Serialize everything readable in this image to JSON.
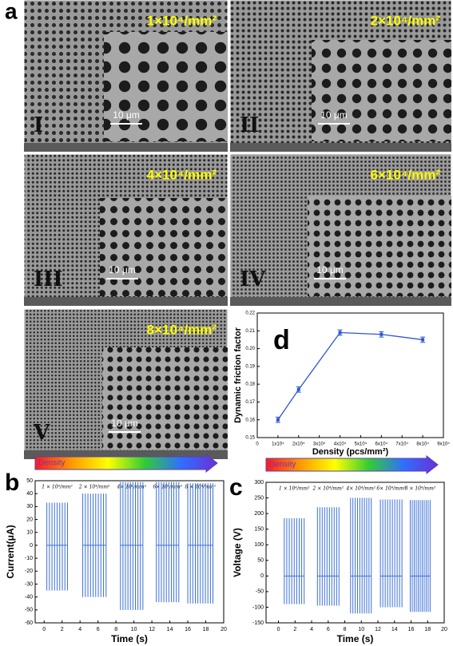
{
  "panel_labels": {
    "a": "a",
    "b": "b",
    "c": "c",
    "d": "d"
  },
  "sem_panels": [
    {
      "density": "1×10⁴/mm²",
      "numeral": "I",
      "scale_bar": "10 μm"
    },
    {
      "density": "2×10⁴/mm²",
      "numeral": "II",
      "scale_bar": "10 μm"
    },
    {
      "density": "4×10⁴/mm²",
      "numeral": "III",
      "scale_bar": "10 μm"
    },
    {
      "density": "6×10⁴/mm²",
      "numeral": "IV",
      "scale_bar": "10 μm"
    },
    {
      "density": "8×10⁴/mm²",
      "numeral": "V",
      "scale_bar": "10 μm"
    }
  ],
  "chart_data": [
    {
      "type": "line",
      "y_label": "Dynamic friction factor",
      "x_label": "Density (pcs/mm²)",
      "x": [
        10000,
        20000,
        40000,
        60000,
        80000
      ],
      "series": [
        {
          "color": "#2f55d4",
          "values": [
            0.16,
            0.177,
            0.209,
            0.208,
            0.205
          ],
          "errors": [
            0.0015,
            0.0015,
            0.0015,
            0.0015,
            0.0015
          ]
        }
      ],
      "xlim": [
        0,
        90000
      ],
      "xticks": [
        0,
        {
          "value": 10000,
          "label": "1x10⁴"
        },
        {
          "value": 20000,
          "label": "2x10⁴"
        },
        {
          "value": 30000,
          "label": "3x10⁴"
        },
        {
          "value": 40000,
          "label": "4x10⁴"
        },
        {
          "value": 50000,
          "label": "5x10⁴"
        },
        {
          "value": 60000,
          "label": "6x10⁴"
        },
        {
          "value": 70000,
          "label": "7x10⁴"
        },
        {
          "value": 80000,
          "label": "8x10⁴"
        },
        {
          "value": 90000,
          "label": "9x10⁴"
        }
      ],
      "ylim": [
        0.15,
        0.22
      ],
      "yticks": [
        0.15,
        0.16,
        0.17,
        0.18,
        0.19,
        {
          "value": 0.2,
          "label": "0.20"
        },
        0.21,
        0.22
      ]
    },
    {
      "type": "pulses",
      "legend_label": "Density",
      "y_label": "Current(μA)",
      "x_label": "Time (s)",
      "color": "#3a6fd8",
      "groups": [
        {
          "name": "1 × 10⁴/mm²",
          "x": [
            0.3,
            2.6
          ],
          "values": [
            -35,
            33
          ],
          "pulses": 9
        },
        {
          "name": "2 × 10⁴/mm²",
          "x": [
            4.3,
            6.9
          ],
          "values": [
            -40,
            40
          ],
          "pulses": 10
        },
        {
          "name": "4× 10⁴/mm²",
          "x": [
            8.5,
            11
          ],
          "values": [
            -50,
            49
          ],
          "pulses": 10
        },
        {
          "name": "6× 10⁴/mm²",
          "x": [
            12.5,
            15
          ],
          "values": [
            -44,
            49
          ],
          "pulses": 10
        },
        {
          "name": "8 × 10⁴/mm²",
          "x": [
            16,
            18.8
          ],
          "values": [
            -45,
            48
          ],
          "pulses": 11
        }
      ],
      "xlim": [
        -1,
        20
      ],
      "xticks": [
        0,
        2,
        4,
        6,
        8,
        10,
        12,
        14,
        16,
        18,
        20
      ],
      "ylim": [
        -60,
        50
      ],
      "yticks": [
        -60,
        -50,
        -40,
        -30,
        -20,
        -10,
        0,
        10,
        20,
        30,
        40,
        50
      ]
    },
    {
      "type": "pulses",
      "legend_label": "Density",
      "y_label": "Voltage (V)",
      "x_label": "Time (s)",
      "color": "#3a6fd8",
      "groups": [
        {
          "name": "1 × 10⁴/mm²",
          "x": [
            0.7,
            3.1
          ],
          "values": [
            -90,
            185
          ],
          "pulses": 9
        },
        {
          "name": "2 × 10⁴/mm²",
          "x": [
            4.7,
            7.3
          ],
          "values": [
            -95,
            220
          ],
          "pulses": 10
        },
        {
          "name": "4× 10⁴/mm²",
          "x": [
            8.7,
            11.2
          ],
          "values": [
            -120,
            250
          ],
          "pulses": 10
        },
        {
          "name": "6× 10⁴/mm²",
          "x": [
            12.3,
            14.9
          ],
          "values": [
            -100,
            245
          ],
          "pulses": 10
        },
        {
          "name": "8 × 10⁴/mm²",
          "x": [
            15.9,
            18.3
          ],
          "values": [
            -115,
            243
          ],
          "pulses": 11
        }
      ],
      "xlim": [
        -1.5,
        20
      ],
      "xticks": [
        0,
        2,
        4,
        6,
        8,
        10,
        12,
        14,
        16,
        18,
        20
      ],
      "ylim": [
        -150,
        300
      ],
      "yticks": [
        -150,
        -100,
        -50,
        0,
        50,
        100,
        150,
        200,
        250,
        300
      ]
    }
  ]
}
